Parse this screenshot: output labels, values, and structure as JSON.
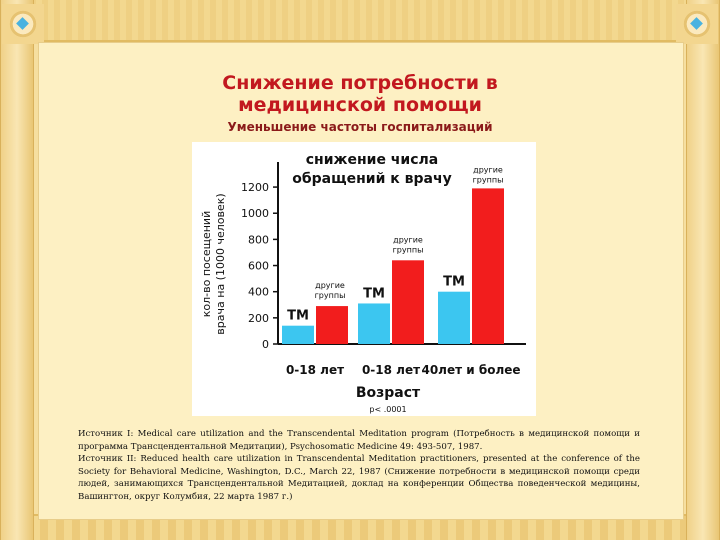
{
  "slide": {
    "title_line1": "Снижение потребности в",
    "title_line2": "медицинской помощи",
    "subtitle": "Уменьшение частоты госпитализаций"
  },
  "chart_data": {
    "type": "bar",
    "title_line1": "снижение числа",
    "title_line2": "обращений к врачу",
    "ylabel_line1": "кол-во посещений",
    "ylabel_line2": "врача на (1000 человек)",
    "xlabel": "Возраст",
    "yticks": [
      0,
      200,
      400,
      600,
      800,
      1000,
      1200
    ],
    "ylim": [
      0,
      1300
    ],
    "categories": [
      "0-18 лет",
      "0-18 лет",
      "40лет и более"
    ],
    "series": [
      {
        "name": "ТМ",
        "color": "#3cc6f0",
        "values": [
          140,
          310,
          400
        ]
      },
      {
        "name": "другие группы",
        "color": "#f21d1d",
        "values": [
          290,
          640,
          1190
        ]
      }
    ],
    "bar_labels": [
      {
        "series": "ТМ",
        "index": 0,
        "text": "ТМ"
      },
      {
        "series": "ТМ",
        "index": 1,
        "text": "ТМ"
      },
      {
        "series": "ТМ",
        "index": 2,
        "text": "ТМ"
      },
      {
        "series": "другие группы",
        "index": 0,
        "text": "другие\nгруппы"
      },
      {
        "series": "другие группы",
        "index": 1,
        "text": "другие\nгруппы"
      },
      {
        "series": "другие группы",
        "index": 2,
        "text": "другие\nгруппы"
      }
    ],
    "annotation": "p< .0001",
    "grid": false
  },
  "sources": {
    "line1": "Источник I: Medical care utilization and the Transcendental Meditation program (Потребность в медицинской помощи и программа Трансцендентальной Медитации), Psychosomatic Medicine 49: 493-507, 1987.",
    "line2": "Источник II: Reduced health care utilization in Transcendental Meditation practitioners, presented at the conference of the Society for Behavioral Medicine, Washington, D.C., March 22, 1987 (Снижение потребности в медицинской помощи среди людей, занимающихся Трансцендентальной Медитацией, доклад на конференции Общества поведенческой медицины, Вашингтон, округ Колумбия, 22 марта 1987 г.)"
  }
}
